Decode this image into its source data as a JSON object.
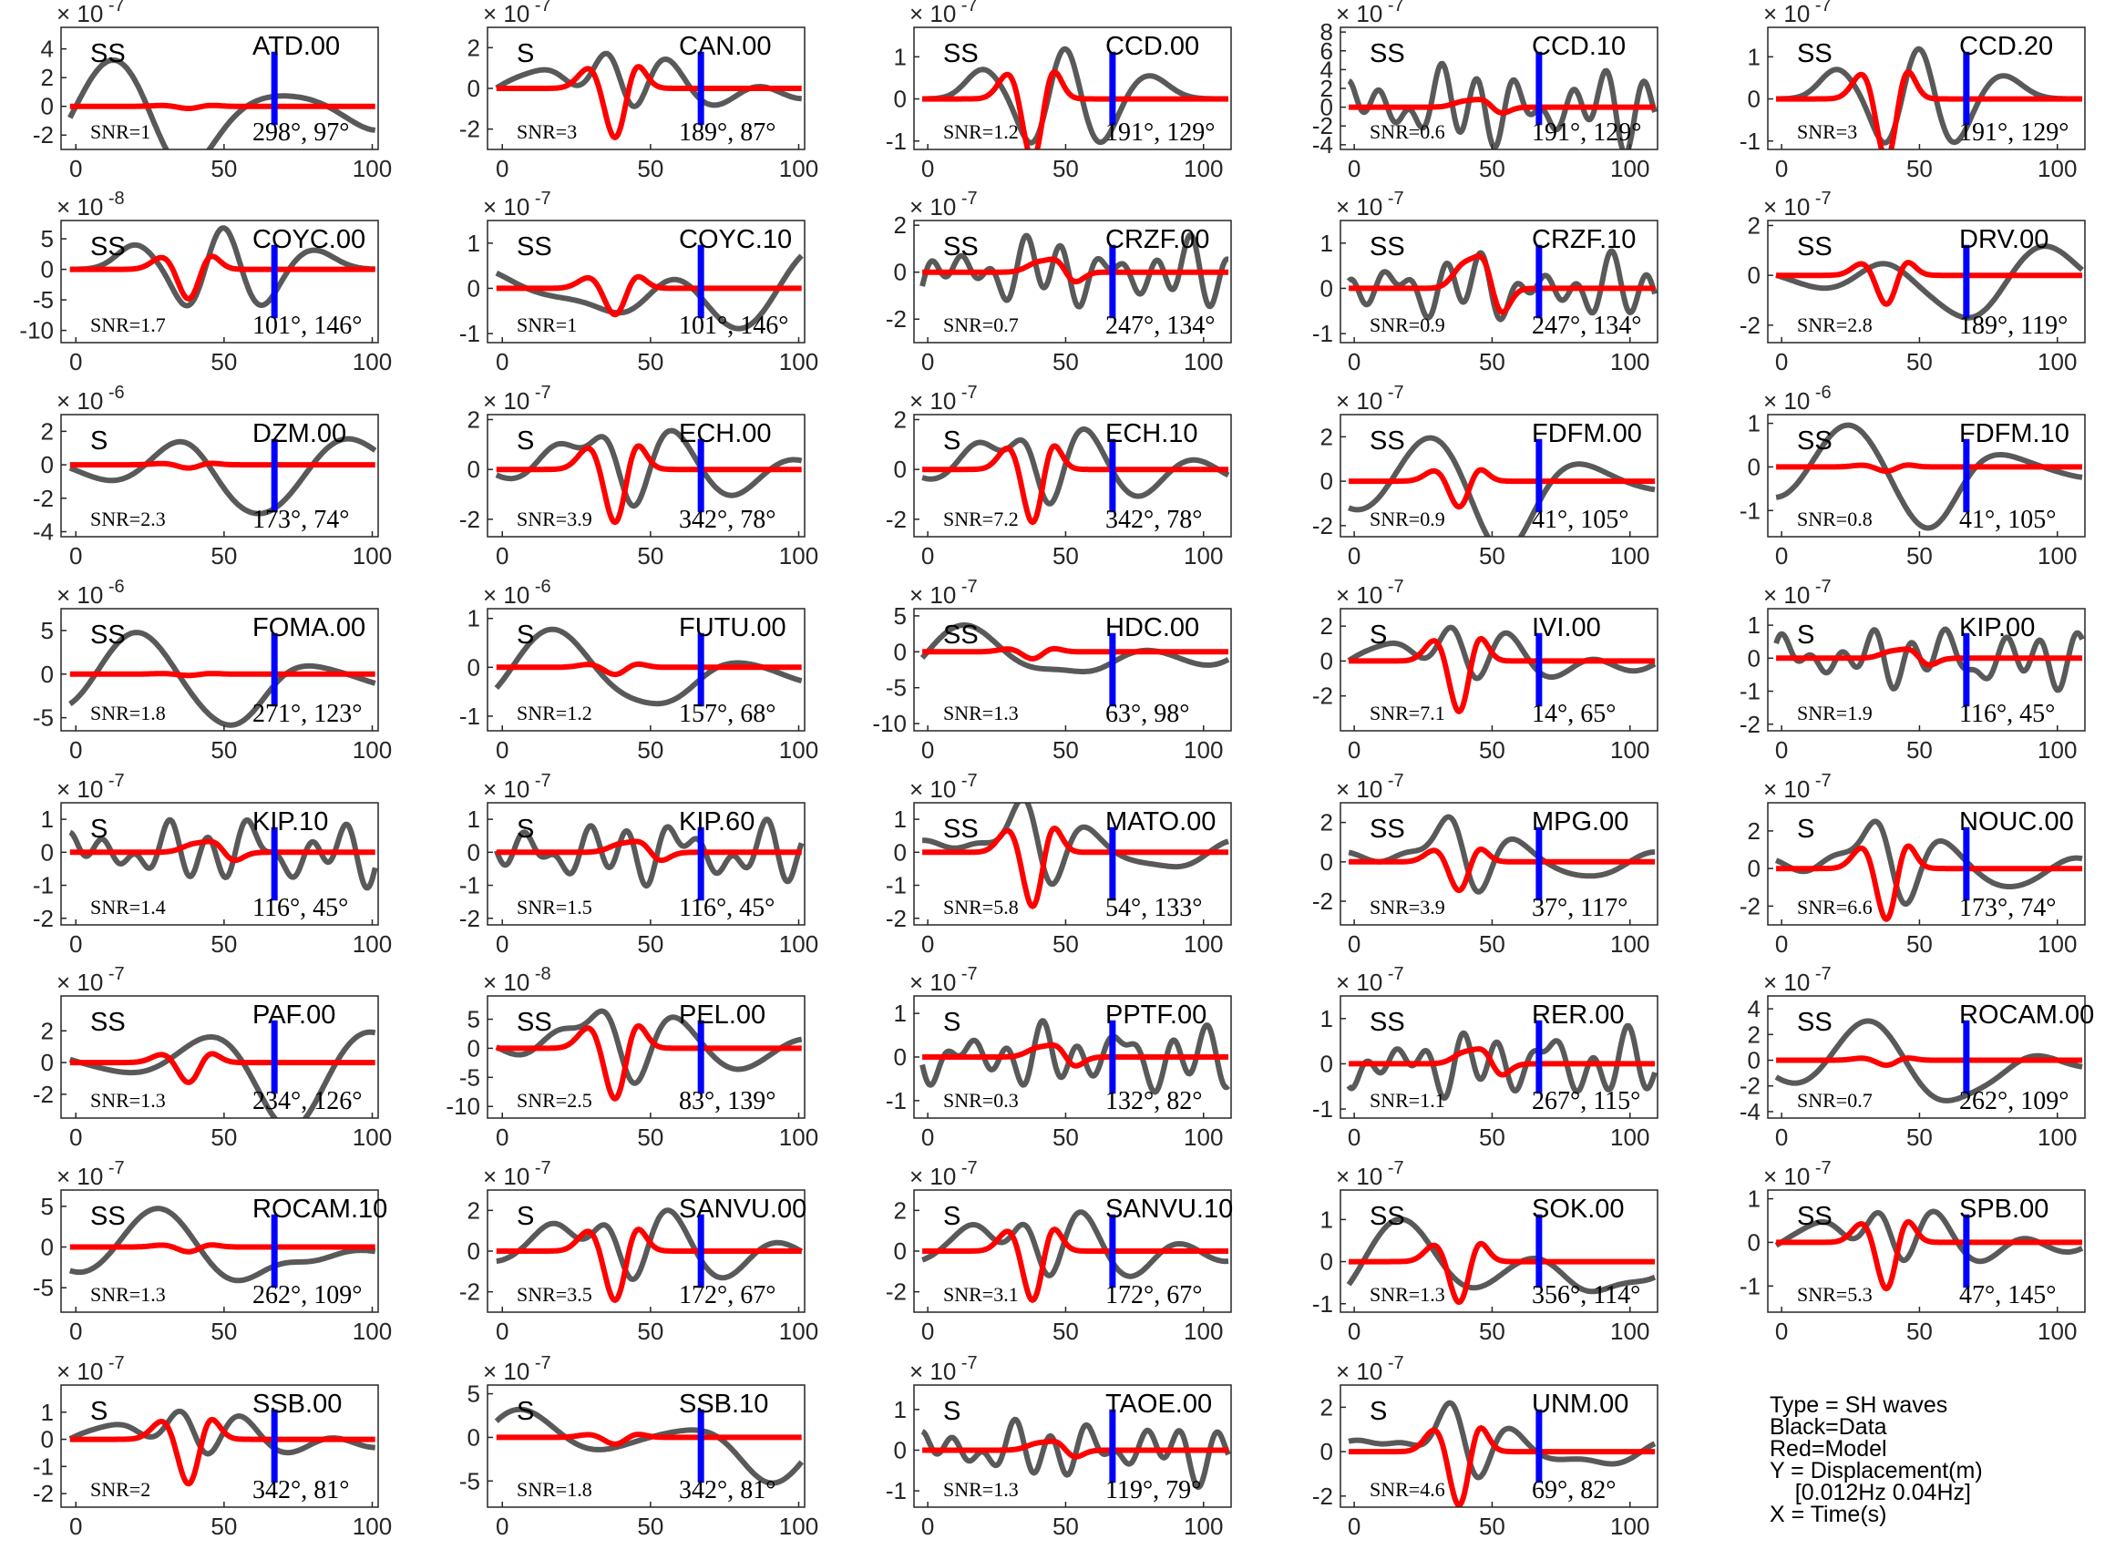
{
  "legend": {
    "lines": [
      "Type = SH waves",
      "Black=Data",
      "Red=Model",
      "Y = Displacement(m)",
      "    [0.012Hz 0.04Hz]",
      "X = Time(s)"
    ]
  },
  "colors": {
    "data": "#595959",
    "model": "#ff0000",
    "marker": "#0000ff",
    "axis": "#262626"
  },
  "chart_data": [
    {
      "type": "line",
      "station": "ATD.00",
      "phase": "SS",
      "snr": "SNR=1",
      "az_label": "298°, 97°",
      "exp": "× 10",
      "exp_pow": "-7",
      "xlim": [
        -5,
        102
      ],
      "ylim": [
        -3,
        5.5
      ],
      "xticks": [
        0,
        50,
        100
      ],
      "yticks": [
        -2,
        0,
        2,
        4
      ],
      "marker_x": 67,
      "shape": "ss_slow",
      "amp": 4.5,
      "model_amp": 0.15
    },
    {
      "type": "line",
      "station": "CAN.00",
      "phase": "S",
      "snr": "SNR=3",
      "az_label": "189°, 87°",
      "exp": "× 10",
      "exp_pow": "-7",
      "xlim": [
        -5,
        102
      ],
      "ylim": [
        -3,
        3
      ],
      "xticks": [
        0,
        50,
        100
      ],
      "yticks": [
        -2,
        0,
        2
      ],
      "marker_x": 67,
      "shape": "s_pulse",
      "amp": 2.5,
      "model_amp": 2.5
    },
    {
      "type": "line",
      "station": "CCD.00",
      "phase": "SS",
      "snr": "SNR=1.2",
      "az_label": "191°, 129°",
      "exp": "× 10",
      "exp_pow": "-7",
      "xlim": [
        -5,
        110
      ],
      "ylim": [
        -1.2,
        1.7
      ],
      "xticks": [
        0,
        50,
        100
      ],
      "yticks": [
        -1,
        0,
        1
      ],
      "marker_x": 67,
      "shape": "ss_pulse",
      "amp": 1.4,
      "model_amp": 1.5
    },
    {
      "type": "line",
      "station": "CCD.10",
      "phase": "SS",
      "snr": "SNR=0.6",
      "az_label": "191°, 129°",
      "exp": "× 10",
      "exp_pow": "-7",
      "xlim": [
        -5,
        110
      ],
      "ylim": [
        -4.5,
        8.5
      ],
      "xticks": [
        0,
        50,
        100
      ],
      "yticks": [
        -4,
        -2,
        0,
        2,
        4,
        6,
        8
      ],
      "marker_x": 67,
      "shape": "noisy",
      "amp": 6,
      "model_amp": 1.5
    },
    {
      "type": "line",
      "station": "CCD.20",
      "phase": "SS",
      "snr": "SNR=3",
      "az_label": "191°, 129°",
      "exp": "× 10",
      "exp_pow": "-7",
      "xlim": [
        -5,
        110
      ],
      "ylim": [
        -1.2,
        1.7
      ],
      "xticks": [
        0,
        50,
        100
      ],
      "yticks": [
        -1,
        0,
        1
      ],
      "marker_x": 67,
      "shape": "ss_pulse",
      "amp": 1.4,
      "model_amp": 1.5
    },
    {
      "type": "line",
      "station": "COYC.00",
      "phase": "SS",
      "snr": "SNR=1.7",
      "az_label": "101°, 146°",
      "exp": "× 10",
      "exp_pow": "-8",
      "xlim": [
        -5,
        102
      ],
      "ylim": [
        -12,
        8
      ],
      "xticks": [
        0,
        50,
        100
      ],
      "yticks": [
        -10,
        -5,
        0,
        5
      ],
      "marker_x": 67,
      "shape": "ss_pulse",
      "amp": 8,
      "model_amp": 5
    },
    {
      "type": "line",
      "station": "COYC.10",
      "phase": "SS",
      "snr": "SNR=1",
      "az_label": "101°, 146°",
      "exp": "× 10",
      "exp_pow": "-7",
      "xlim": [
        -5,
        102
      ],
      "ylim": [
        -1.2,
        1.5
      ],
      "xticks": [
        0,
        50,
        100
      ],
      "yticks": [
        -1,
        0,
        1
      ],
      "marker_x": 67,
      "shape": "ss_slow",
      "amp": 1.2,
      "model_amp": 0.6
    },
    {
      "type": "line",
      "station": "CRZF.00",
      "phase": "SS",
      "snr": "SNR=0.7",
      "az_label": "247°, 134°",
      "exp": "× 10",
      "exp_pow": "-7",
      "xlim": [
        -5,
        110
      ],
      "ylim": [
        -3,
        2.2
      ],
      "xticks": [
        0,
        50,
        100
      ],
      "yticks": [
        -2,
        0,
        2
      ],
      "marker_x": 67,
      "shape": "noisy",
      "amp": 2,
      "model_amp": 1
    },
    {
      "type": "line",
      "station": "CRZF.10",
      "phase": "SS",
      "snr": "SNR=0.9",
      "az_label": "247°, 134°",
      "exp": "× 10",
      "exp_pow": "-7",
      "xlim": [
        -5,
        110
      ],
      "ylim": [
        -1.2,
        1.5
      ],
      "xticks": [
        0,
        50,
        100
      ],
      "yticks": [
        -1,
        0,
        1
      ],
      "marker_x": 67,
      "shape": "noisy",
      "amp": 1,
      "model_amp": 1.3
    },
    {
      "type": "line",
      "station": "DRV.00",
      "phase": "SS",
      "snr": "SNR=2.8",
      "az_label": "189°, 119°",
      "exp": "× 10",
      "exp_pow": "-7",
      "xlim": [
        -5,
        110
      ],
      "ylim": [
        -2.7,
        2.2
      ],
      "xticks": [
        0,
        50,
        100
      ],
      "yticks": [
        -2,
        0,
        2
      ],
      "marker_x": 67,
      "shape": "ss_slow",
      "amp": 2,
      "model_amp": 1.2
    },
    {
      "type": "line",
      "station": "DZM.00",
      "phase": "S",
      "snr": "SNR=2.3",
      "az_label": "173°, 74°",
      "exp": "× 10",
      "exp_pow": "-6",
      "xlim": [
        -5,
        102
      ],
      "ylim": [
        -4.3,
        3
      ],
      "xticks": [
        0,
        50,
        100
      ],
      "yticks": [
        -4,
        -2,
        0,
        2
      ],
      "marker_x": 67,
      "shape": "ss_slow",
      "amp": 3,
      "model_amp": 0.2
    },
    {
      "type": "line",
      "station": "ECH.00",
      "phase": "S",
      "snr": "SNR=3.9",
      "az_label": "342°, 78°",
      "exp": "× 10",
      "exp_pow": "-7",
      "xlim": [
        -5,
        102
      ],
      "ylim": [
        -2.7,
        2.2
      ],
      "xticks": [
        0,
        50,
        100
      ],
      "yticks": [
        -2,
        0,
        2
      ],
      "marker_x": 67,
      "shape": "s_pulse",
      "amp": 2,
      "model_amp": 2.2
    },
    {
      "type": "line",
      "station": "ECH.10",
      "phase": "S",
      "snr": "SNR=7.2",
      "az_label": "342°, 78°",
      "exp": "× 10",
      "exp_pow": "-7",
      "xlim": [
        -5,
        110
      ],
      "ylim": [
        -2.7,
        2.2
      ],
      "xticks": [
        0,
        50,
        100
      ],
      "yticks": [
        -2,
        0,
        2
      ],
      "marker_x": 67,
      "shape": "s_pulse",
      "amp": 2,
      "model_amp": 2.2
    },
    {
      "type": "line",
      "station": "FDFM.00",
      "phase": "SS",
      "snr": "SNR=0.9",
      "az_label": "41°, 105°",
      "exp": "× 10",
      "exp_pow": "-7",
      "xlim": [
        -5,
        110
      ],
      "ylim": [
        -2.5,
        3
      ],
      "xticks": [
        0,
        50,
        100
      ],
      "yticks": [
        -2,
        0,
        2
      ],
      "marker_x": 67,
      "shape": "ss_slow",
      "amp": 2.5,
      "model_amp": 1.2
    },
    {
      "type": "line",
      "station": "FDFM.10",
      "phase": "SS",
      "snr": "SNR=0.8",
      "az_label": "41°, 105°",
      "exp": "× 10",
      "exp_pow": "-6",
      "xlim": [
        -5,
        110
      ],
      "ylim": [
        -1.6,
        1.2
      ],
      "xticks": [
        0,
        50,
        100
      ],
      "yticks": [
        -1,
        0,
        1
      ],
      "marker_x": 67,
      "shape": "ss_slow",
      "amp": 1.2,
      "model_amp": 0.1
    },
    {
      "type": "line",
      "station": "FOMA.00",
      "phase": "SS",
      "snr": "SNR=1.8",
      "az_label": "271°, 123°",
      "exp": "× 10",
      "exp_pow": "-6",
      "xlim": [
        -5,
        102
      ],
      "ylim": [
        -6.5,
        7.5
      ],
      "xticks": [
        0,
        50,
        100
      ],
      "yticks": [
        -5,
        0,
        5
      ],
      "marker_x": 67,
      "shape": "ss_slow",
      "amp": 6,
      "model_amp": 0.15
    },
    {
      "type": "line",
      "station": "FUTU.00",
      "phase": "S",
      "snr": "SNR=1.2",
      "az_label": "157°, 68°",
      "exp": "× 10",
      "exp_pow": "-6",
      "xlim": [
        -5,
        102
      ],
      "ylim": [
        -1.3,
        1.2
      ],
      "xticks": [
        0,
        50,
        100
      ],
      "yticks": [
        -1,
        0,
        1
      ],
      "marker_x": 67,
      "shape": "ss_slow",
      "amp": 1,
      "model_amp": 0.15
    },
    {
      "type": "line",
      "station": "HDC.00",
      "phase": "SS",
      "snr": "SNR=1.3",
      "az_label": "63°, 98°",
      "exp": "× 10",
      "exp_pow": "-7",
      "xlim": [
        -5,
        110
      ],
      "ylim": [
        -11,
        6
      ],
      "xticks": [
        0,
        50,
        100
      ],
      "yticks": [
        -10,
        -5,
        0,
        5
      ],
      "marker_x": 67,
      "shape": "ss_slow",
      "amp": 5,
      "model_amp": 1
    },
    {
      "type": "line",
      "station": "IVI.00",
      "phase": "S",
      "snr": "SNR=7.1",
      "az_label": "14°, 65°",
      "exp": "× 10",
      "exp_pow": "-7",
      "xlim": [
        -5,
        110
      ],
      "ylim": [
        -4,
        3
      ],
      "xticks": [
        0,
        50,
        100
      ],
      "yticks": [
        -2,
        0,
        2
      ],
      "marker_x": 67,
      "shape": "s_pulse",
      "amp": 2.8,
      "model_amp": 3
    },
    {
      "type": "line",
      "station": "KIP.00",
      "phase": "S",
      "snr": "SNR=1.9",
      "az_label": "116°, 45°",
      "exp": "× 10",
      "exp_pow": "-7",
      "xlim": [
        -5,
        110
      ],
      "ylim": [
        -2.2,
        1.5
      ],
      "xticks": [
        0,
        50,
        100
      ],
      "yticks": [
        -2,
        -1,
        0,
        1
      ],
      "marker_x": 67,
      "shape": "noisy",
      "amp": 1.2,
      "model_amp": 0.5
    },
    {
      "type": "line",
      "station": "KIP.10",
      "phase": "S",
      "snr": "SNR=1.4",
      "az_label": "116°, 45°",
      "exp": "× 10",
      "exp_pow": "-7",
      "xlim": [
        -5,
        102
      ],
      "ylim": [
        -2.2,
        1.5
      ],
      "xticks": [
        0,
        50,
        100
      ],
      "yticks": [
        -2,
        -1,
        0,
        1
      ],
      "marker_x": 67,
      "shape": "noisy",
      "amp": 1.3,
      "model_amp": 0.6
    },
    {
      "type": "line",
      "station": "KIP.60",
      "phase": "S",
      "snr": "SNR=1.5",
      "az_label": "116°, 45°",
      "exp": "× 10",
      "exp_pow": "-7",
      "xlim": [
        -5,
        102
      ],
      "ylim": [
        -2.2,
        1.5
      ],
      "xticks": [
        0,
        50,
        100
      ],
      "yticks": [
        -2,
        -1,
        0,
        1
      ],
      "marker_x": 67,
      "shape": "noisy",
      "amp": 1.3,
      "model_amp": 0.6
    },
    {
      "type": "line",
      "station": "MATO.00",
      "phase": "SS",
      "snr": "SNR=5.8",
      "az_label": "54°, 133°",
      "exp": "× 10",
      "exp_pow": "-7",
      "xlim": [
        -5,
        110
      ],
      "ylim": [
        -2.2,
        1.5
      ],
      "xticks": [
        0,
        50,
        100
      ],
      "yticks": [
        -2,
        -1,
        0,
        1
      ],
      "marker_x": 67,
      "shape": "s_pulse",
      "amp": 1.8,
      "model_amp": 1.7
    },
    {
      "type": "line",
      "station": "MPG.00",
      "phase": "SS",
      "snr": "SNR=3.9",
      "az_label": "37°, 117°",
      "exp": "× 10",
      "exp_pow": "-7",
      "xlim": [
        -5,
        110
      ],
      "ylim": [
        -3.2,
        3
      ],
      "xticks": [
        0,
        50,
        100
      ],
      "yticks": [
        -2,
        0,
        2
      ],
      "marker_x": 67,
      "shape": "s_pulse",
      "amp": 2.5,
      "model_amp": 1.5
    },
    {
      "type": "line",
      "station": "NOUC.00",
      "phase": "S",
      "snr": "SNR=6.6",
      "az_label": "173°, 74°",
      "exp": "× 10",
      "exp_pow": "-7",
      "xlim": [
        -5,
        110
      ],
      "ylim": [
        -3,
        3.5
      ],
      "xticks": [
        0,
        50,
        100
      ],
      "yticks": [
        -2,
        0,
        2
      ],
      "marker_x": 67,
      "shape": "s_pulse",
      "amp": 2.8,
      "model_amp": 2.8
    },
    {
      "type": "line",
      "station": "PAF.00",
      "phase": "SS",
      "snr": "SNR=1.3",
      "az_label": "234°, 126°",
      "exp": "× 10",
      "exp_pow": "-7",
      "xlim": [
        -5,
        102
      ],
      "ylim": [
        -3.5,
        4.2
      ],
      "xticks": [
        0,
        50,
        100
      ],
      "yticks": [
        -2,
        0,
        2
      ],
      "marker_x": 67,
      "shape": "ss_slow",
      "amp": 3,
      "model_amp": 1.3
    },
    {
      "type": "line",
      "station": "PEL.00",
      "phase": "SS",
      "snr": "SNR=2.5",
      "az_label": "83°, 139°",
      "exp": "× 10",
      "exp_pow": "-8",
      "xlim": [
        -5,
        102
      ],
      "ylim": [
        -12,
        9
      ],
      "xticks": [
        0,
        50,
        100
      ],
      "yticks": [
        -10,
        -5,
        0,
        5
      ],
      "marker_x": 67,
      "shape": "s_pulse",
      "amp": 8,
      "model_amp": 9
    },
    {
      "type": "line",
      "station": "PPTF.00",
      "phase": "S",
      "snr": "SNR=0.3",
      "az_label": "132°, 82°",
      "exp": "× 10",
      "exp_pow": "-7",
      "xlim": [
        -5,
        110
      ],
      "ylim": [
        -1.4,
        1.4
      ],
      "xticks": [
        0,
        50,
        100
      ],
      "yticks": [
        -1,
        0,
        1
      ],
      "marker_x": 67,
      "shape": "noisy",
      "amp": 1,
      "model_amp": 0.5
    },
    {
      "type": "line",
      "station": "RER.00",
      "phase": "SS",
      "snr": "SNR=1.1",
      "az_label": "267°, 115°",
      "exp": "× 10",
      "exp_pow": "-7",
      "xlim": [
        -5,
        110
      ],
      "ylim": [
        -1.2,
        1.5
      ],
      "xticks": [
        0,
        50,
        100
      ],
      "yticks": [
        -1,
        0,
        1
      ],
      "marker_x": 67,
      "shape": "noisy",
      "amp": 1,
      "model_amp": 0.6
    },
    {
      "type": "line",
      "station": "ROCAM.00",
      "phase": "SS",
      "snr": "SNR=0.7",
      "az_label": "262°, 109°",
      "exp": "× 10",
      "exp_pow": "-7",
      "xlim": [
        -5,
        110
      ],
      "ylim": [
        -4.5,
        5
      ],
      "xticks": [
        0,
        50,
        100
      ],
      "yticks": [
        -4,
        -2,
        0,
        2,
        4
      ],
      "marker_x": 67,
      "shape": "ss_slow",
      "amp": 4,
      "model_amp": 0.4
    },
    {
      "type": "line",
      "station": "ROCAM.10",
      "phase": "SS",
      "snr": "SNR=1.3",
      "az_label": "262°, 109°",
      "exp": "× 10",
      "exp_pow": "-7",
      "xlim": [
        -5,
        102
      ],
      "ylim": [
        -8,
        7
      ],
      "xticks": [
        0,
        50,
        100
      ],
      "yticks": [
        -5,
        0,
        5
      ],
      "marker_x": 67,
      "shape": "ss_slow",
      "amp": 6,
      "model_amp": 0.6
    },
    {
      "type": "line",
      "station": "SANVU.00",
      "phase": "S",
      "snr": "SNR=3.5",
      "az_label": "172°, 67°",
      "exp": "× 10",
      "exp_pow": "-7",
      "xlim": [
        -5,
        102
      ],
      "ylim": [
        -3,
        3
      ],
      "xticks": [
        0,
        50,
        100
      ],
      "yticks": [
        -2,
        0,
        2
      ],
      "marker_x": 67,
      "shape": "s_pulse",
      "amp": 2.5,
      "model_amp": 2.5
    },
    {
      "type": "line",
      "station": "SANVU.10",
      "phase": "S",
      "snr": "SNR=3.1",
      "az_label": "172°, 67°",
      "exp": "× 10",
      "exp_pow": "-7",
      "xlim": [
        -5,
        110
      ],
      "ylim": [
        -3,
        3
      ],
      "xticks": [
        0,
        50,
        100
      ],
      "yticks": [
        -2,
        0,
        2
      ],
      "marker_x": 67,
      "shape": "s_pulse",
      "amp": 2.5,
      "model_amp": 2.5
    },
    {
      "type": "line",
      "station": "SOK.00",
      "phase": "SS",
      "snr": "SNR=1.3",
      "az_label": "356°, 114°",
      "exp": "× 10",
      "exp_pow": "-7",
      "xlim": [
        -5,
        110
      ],
      "ylim": [
        -1.2,
        1.7
      ],
      "xticks": [
        0,
        50,
        100
      ],
      "yticks": [
        -1,
        0,
        1
      ],
      "marker_x": 67,
      "shape": "ss_slow",
      "amp": 1.3,
      "model_amp": 1
    },
    {
      "type": "line",
      "station": "SPB.00",
      "phase": "SS",
      "snr": "SNR=5.3",
      "az_label": "47°, 145°",
      "exp": "× 10",
      "exp_pow": "-7",
      "xlim": [
        -5,
        110
      ],
      "ylim": [
        -1.6,
        1.2
      ],
      "xticks": [
        0,
        50,
        100
      ],
      "yticks": [
        -1,
        0,
        1
      ],
      "marker_x": 67,
      "shape": "s_pulse",
      "amp": 1.1,
      "model_amp": 1.1
    },
    {
      "type": "line",
      "station": "SSB.00",
      "phase": "S",
      "snr": "SNR=2",
      "az_label": "342°, 81°",
      "exp": "× 10",
      "exp_pow": "-7",
      "xlim": [
        -5,
        102
      ],
      "ylim": [
        -2.5,
        2
      ],
      "xticks": [
        0,
        50,
        100
      ],
      "yticks": [
        -2,
        -1,
        0,
        1
      ],
      "marker_x": 67,
      "shape": "s_pulse",
      "amp": 1.5,
      "model_amp": 1.7
    },
    {
      "type": "line",
      "station": "SSB.10",
      "phase": "S",
      "snr": "SNR=1.8",
      "az_label": "342°, 81°",
      "exp": "× 10",
      "exp_pow": "-7",
      "xlim": [
        -5,
        102
      ],
      "ylim": [
        -8,
        6
      ],
      "xticks": [
        0,
        50,
        100
      ],
      "yticks": [
        -5,
        0,
        5
      ],
      "marker_x": 67,
      "shape": "ss_slow",
      "amp": 5,
      "model_amp": 0.8
    },
    {
      "type": "line",
      "station": "TAOE.00",
      "phase": "S",
      "snr": "SNR=1.3",
      "az_label": "119°, 79°",
      "exp": "× 10",
      "exp_pow": "-7",
      "xlim": [
        -5,
        110
      ],
      "ylim": [
        -1.4,
        1.6
      ],
      "xticks": [
        0,
        50,
        100
      ],
      "yticks": [
        -1,
        0,
        1
      ],
      "marker_x": 67,
      "shape": "noisy",
      "amp": 1,
      "model_amp": 0.4
    },
    {
      "type": "line",
      "station": "UNM.00",
      "phase": "S",
      "snr": "SNR=4.6",
      "az_label": "69°, 82°",
      "exp": "× 10",
      "exp_pow": "-7",
      "xlim": [
        -5,
        110
      ],
      "ylim": [
        -2.5,
        3
      ],
      "xticks": [
        0,
        50,
        100
      ],
      "yticks": [
        -2,
        0,
        2
      ],
      "marker_x": 67,
      "shape": "s_pulse",
      "amp": 2.5,
      "model_amp": 2.5
    }
  ]
}
